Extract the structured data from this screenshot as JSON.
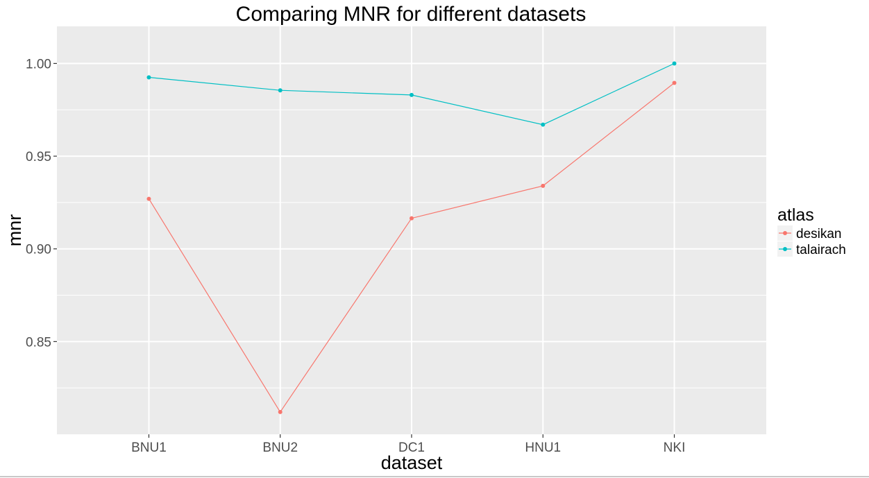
{
  "chart_data": {
    "type": "line",
    "title": "Comparing MNR for different datasets",
    "xlabel": "dataset",
    "ylabel": "mnr",
    "categories": [
      "BNU1",
      "BNU2",
      "DC1",
      "HNU1",
      "NKI"
    ],
    "ylim": [
      0.8,
      1.02
    ],
    "yticks": [
      0.85,
      0.9,
      0.95,
      1.0
    ],
    "ytick_labels": [
      "0.85",
      "0.90",
      "0.95",
      "1.00"
    ],
    "grid": true,
    "legend": {
      "title": "atlas",
      "position": "right"
    },
    "series": [
      {
        "name": "desikan",
        "color": "#F8766D",
        "values": [
          0.927,
          0.812,
          0.9165,
          0.934,
          0.9895
        ]
      },
      {
        "name": "talairach",
        "color": "#00BFC4",
        "values": [
          0.9925,
          0.9855,
          0.983,
          0.967,
          1.0
        ]
      }
    ],
    "panel_background": "#EBEBEB",
    "grid_color": "#FFFFFF"
  }
}
